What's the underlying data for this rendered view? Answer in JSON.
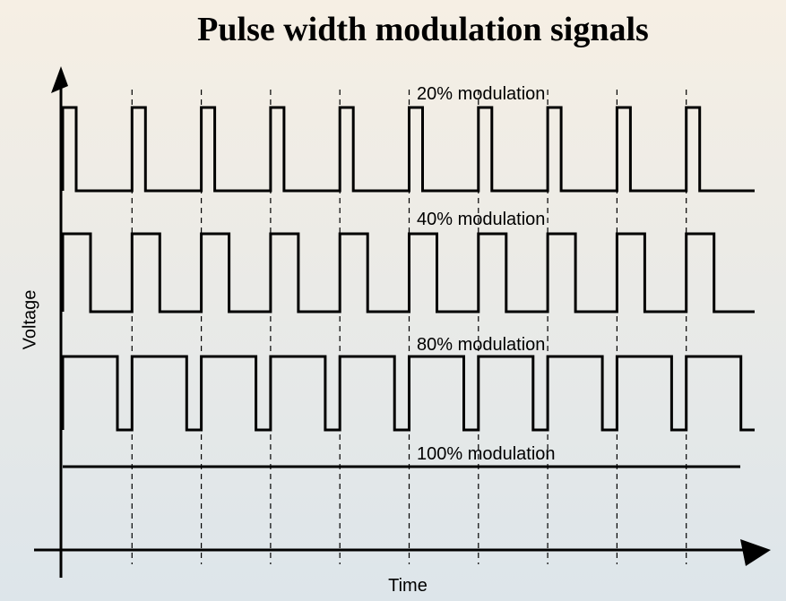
{
  "title": "Pulse width modulation signals",
  "y_axis_label": "Voltage",
  "x_axis_label": "Time",
  "signals": [
    {
      "label": "20% modulation"
    },
    {
      "label": "40% modulation"
    },
    {
      "label": "80% modulation"
    },
    {
      "label": "100% modulation"
    }
  ]
}
